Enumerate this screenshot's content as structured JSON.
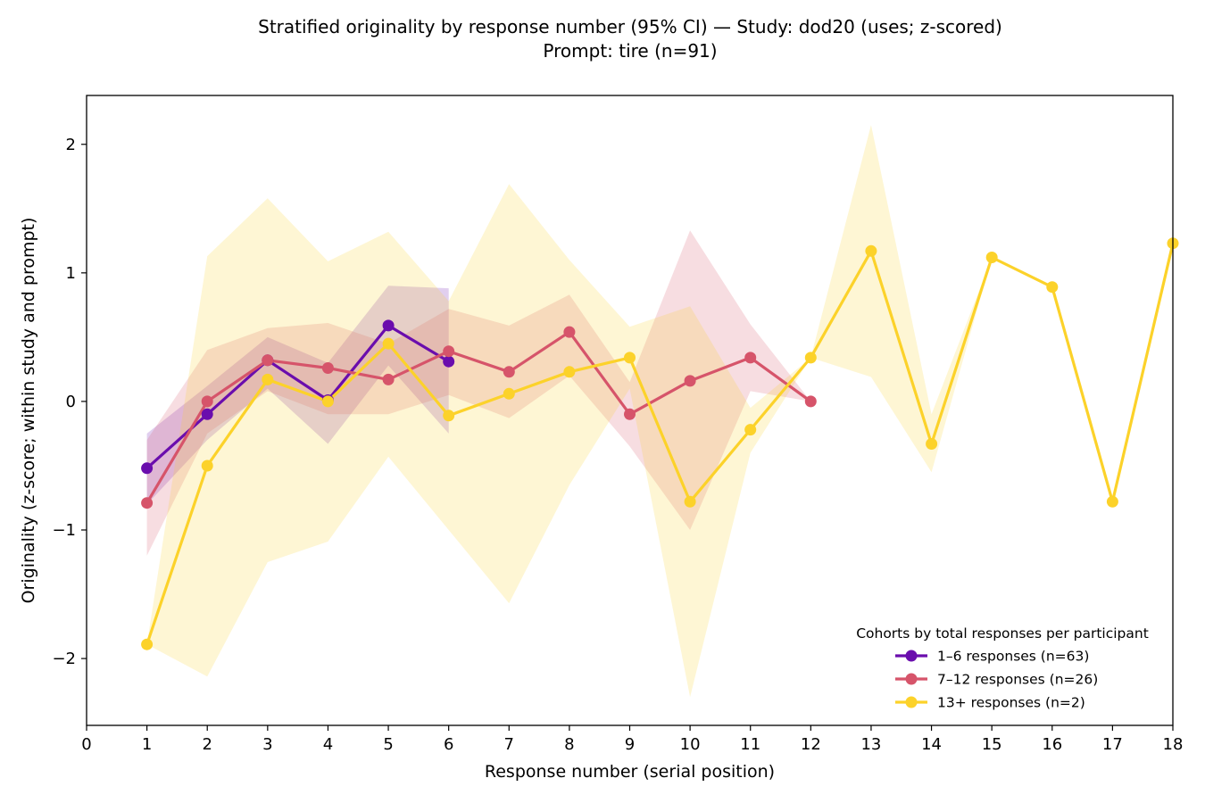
{
  "chart_data": {
    "type": "line",
    "title": "Stratified originality by response number (95% CI) — Study: dod20 (uses; z-scored)",
    "subtitle": "Prompt: tire (n=91)",
    "xlabel": "Response number (serial position)",
    "ylabel": "Originality (z-score; within study and prompt)",
    "xlim": [
      0,
      18
    ],
    "ylim": [
      -2.52,
      2.38
    ],
    "xticks": [
      "0",
      "1",
      "2",
      "3",
      "4",
      "5",
      "6",
      "7",
      "8",
      "9",
      "10",
      "11",
      "12",
      "13",
      "14",
      "15",
      "16",
      "17",
      "18"
    ],
    "yticks": [
      "−2",
      "−1",
      "0",
      "1",
      "2"
    ],
    "grid": false,
    "legend": {
      "title": "Cohorts by total responses per participant",
      "placement": "lower-right"
    },
    "series": [
      {
        "name": "1–6 responses (n=63)",
        "color": "#6a0dad",
        "x": [
          1,
          2,
          3,
          4,
          5,
          6
        ],
        "y": [
          -0.52,
          -0.1,
          0.32,
          0.01,
          0.59,
          0.31
        ],
        "ci_low": [
          -0.8,
          -0.3,
          0.1,
          -0.33,
          0.28,
          -0.25
        ],
        "ci_high": [
          -0.25,
          0.12,
          0.5,
          0.3,
          0.9,
          0.88
        ]
      },
      {
        "name": "7–12 responses (n=26)",
        "color": "#d6546a",
        "x": [
          1,
          2,
          3,
          4,
          5,
          6,
          7,
          8,
          9,
          10,
          11,
          12
        ],
        "y": [
          -0.79,
          0.0,
          0.32,
          0.26,
          0.17,
          0.39,
          0.23,
          0.54,
          -0.1,
          0.16,
          0.34,
          0.0
        ],
        "ci_low": [
          -1.2,
          -0.25,
          0.08,
          -0.1,
          -0.1,
          0.05,
          -0.13,
          0.2,
          -0.35,
          -1.0,
          0.08,
          0.0
        ],
        "ci_high": [
          -0.3,
          0.4,
          0.57,
          0.61,
          0.45,
          0.72,
          0.59,
          0.83,
          0.15,
          1.33,
          0.6,
          0.0
        ]
      },
      {
        "name": "13+ responses (n=2)",
        "color": "#fcd22a",
        "x": [
          1,
          2,
          3,
          4,
          5,
          6,
          7,
          8,
          9,
          10,
          11,
          12,
          13,
          14,
          15,
          16,
          17,
          18
        ],
        "y": [
          -1.89,
          -0.5,
          0.17,
          0.0,
          0.45,
          -0.11,
          0.06,
          0.23,
          0.34,
          -0.78,
          -0.22,
          0.34,
          1.17,
          -0.33,
          1.12,
          0.89,
          -0.78,
          1.23
        ],
        "ci_low": [
          -1.89,
          -2.14,
          -1.25,
          -1.09,
          -0.43,
          -1.0,
          -1.57,
          -0.65,
          0.1,
          -2.3,
          -0.4,
          0.34,
          0.19,
          -0.55,
          1.12,
          0.89,
          -0.78,
          1.23
        ],
        "ci_high": [
          -1.89,
          1.13,
          1.58,
          1.09,
          1.32,
          0.78,
          1.69,
          1.1,
          0.58,
          0.74,
          -0.05,
          0.34,
          2.15,
          -0.1,
          1.12,
          0.89,
          -0.78,
          1.23
        ]
      }
    ]
  }
}
